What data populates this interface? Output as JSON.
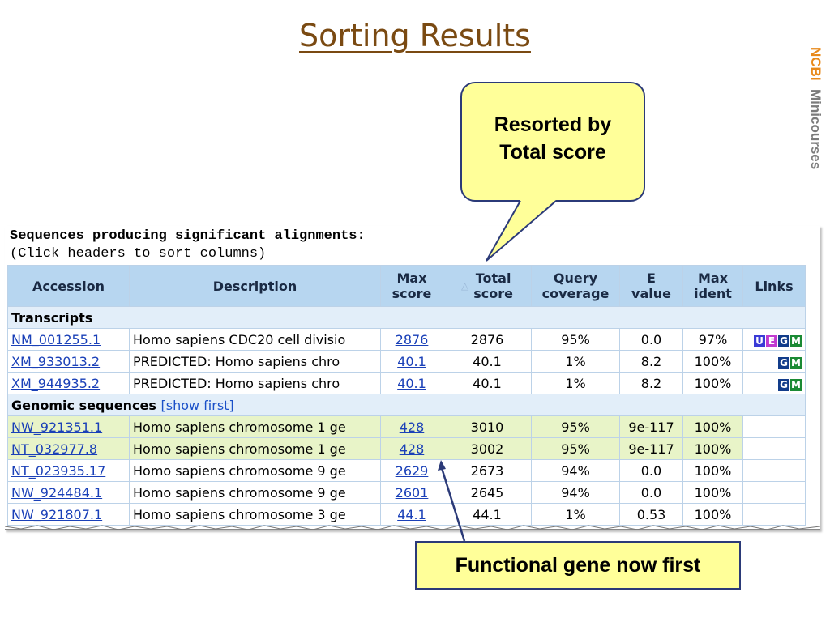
{
  "slide": {
    "title": "Sorting Results",
    "brand_ncbi": "NCBI",
    "brand_mini": "Minicourses"
  },
  "callouts": {
    "resorted_line1": "Resorted by",
    "resorted_line2": "Total score",
    "functional": "Functional gene now first"
  },
  "panel": {
    "heading": "Sequences producing significant alignments:",
    "subheading": "(Click headers to sort columns)"
  },
  "table": {
    "columns": [
      "Accession",
      "Description",
      "Max\nscore",
      "Total\nscore",
      "Query\ncoverage",
      "E\nvalue",
      "Max\nident",
      "Links"
    ],
    "sort_indicator": "△",
    "sections": [
      {
        "title": "Transcripts",
        "extra": "",
        "rows": [
          {
            "accession": "NM_001255.1",
            "description": "Homo sapiens CDC20 cell divisio",
            "max_score": "2876",
            "total_score": "2876",
            "query_coverage": "95%",
            "e_value": "0.0",
            "max_ident": "97%",
            "links": [
              "U",
              "E",
              "G",
              "M"
            ]
          },
          {
            "accession": "XM_933013.2",
            "description": "PREDICTED: Homo sapiens chro",
            "max_score": "40.1",
            "total_score": "40.1",
            "query_coverage": "1%",
            "e_value": "8.2",
            "max_ident": "100%",
            "links": [
              "G",
              "M"
            ]
          },
          {
            "accession": "XM_944935.2",
            "description": "PREDICTED: Homo sapiens chro",
            "max_score": "40.1",
            "total_score": "40.1",
            "query_coverage": "1%",
            "e_value": "8.2",
            "max_ident": "100%",
            "links": [
              "G",
              "M"
            ]
          }
        ]
      },
      {
        "title": "Genomic sequences",
        "extra": "[show first]",
        "rows": [
          {
            "accession": "NW_921351.1",
            "description": "Homo sapiens chromosome 1 ge",
            "max_score": "428",
            "total_score": "3010",
            "query_coverage": "95%",
            "e_value": "9e-117",
            "max_ident": "100%",
            "links": [],
            "highlighted": true
          },
          {
            "accession": "NT_032977.8",
            "description": "Homo sapiens chromosome 1 ge",
            "max_score": "428",
            "total_score": "3002",
            "query_coverage": "95%",
            "e_value": "9e-117",
            "max_ident": "100%",
            "links": [],
            "highlighted": true
          },
          {
            "accession": "NT_023935.17",
            "description": "Homo sapiens chromosome 9 ge",
            "max_score": "2629",
            "total_score": "2673",
            "query_coverage": "94%",
            "e_value": "0.0",
            "max_ident": "100%",
            "links": []
          },
          {
            "accession": "NW_924484.1",
            "description": "Homo sapiens chromosome 9 ge",
            "max_score": "2601",
            "total_score": "2645",
            "query_coverage": "94%",
            "e_value": "0.0",
            "max_ident": "100%",
            "links": []
          },
          {
            "accession": "NW_921807.1",
            "description": "Homo sapiens chromosome 3 ge",
            "max_score": "44.1",
            "total_score": "44.1",
            "query_coverage": "1%",
            "e_value": "0.53",
            "max_ident": "100%",
            "links": []
          }
        ]
      }
    ]
  },
  "colors": {
    "title": "#7a4a12",
    "callout_fill": "#ffff99",
    "callout_border": "#2b3a78",
    "header_bg": "#b7d6f0",
    "highlight": "#e8f4c8",
    "link": "#1a40b8"
  }
}
